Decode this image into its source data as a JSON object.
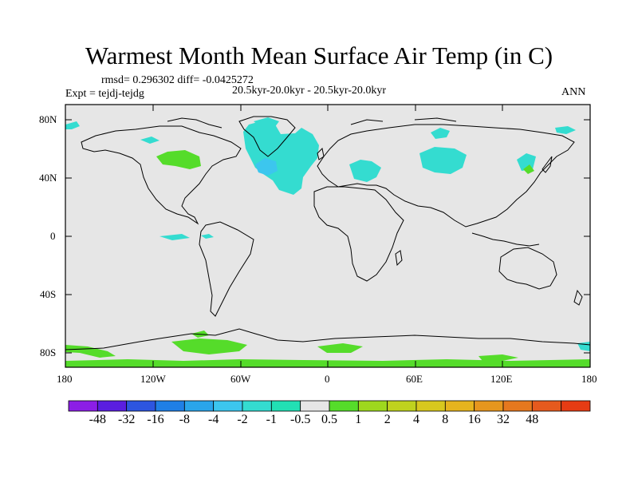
{
  "title": "Warmest Month Mean Surface Air Temp (in C)",
  "stats_line": "rmsd= 0.296302 diff= -0.0425272",
  "experiment": "Expt = tejdj-tejdg",
  "period": "20.5kyr-20.0kyr - 20.5kyr-20.0kyr",
  "season": "ANN",
  "axes": {
    "y_ticks": [
      "80N",
      "40N",
      "0",
      "40S",
      "80S"
    ],
    "x_ticks": [
      "180",
      "120W",
      "60W",
      "0",
      "60E",
      "120E",
      "180"
    ]
  },
  "colorbar": {
    "colors": [
      "#8c1ee6",
      "#5a1ee0",
      "#2d55e0",
      "#1f7fe6",
      "#2aa5ea",
      "#3cc6ee",
      "#34dcd0",
      "#22e0b4",
      "#e6e6e6",
      "#55dc2a",
      "#9ed81e",
      "#bfd21e",
      "#d8c81e",
      "#e6b41e",
      "#e6961e",
      "#e6781e",
      "#e65a1e",
      "#e63c14"
    ],
    "labels": [
      "-48",
      "-32",
      "-16",
      "-8",
      "-4",
      "-2",
      "-1",
      "-0.5",
      "0.5",
      "1",
      "2",
      "4",
      "8",
      "16",
      "32",
      "48"
    ]
  },
  "colors": {
    "background": "#e6e6e6",
    "cool_anomaly": "#34dcd0",
    "strong_cool_anomaly": "#3cc6ee",
    "warm_anomaly": "#55dc2a"
  }
}
